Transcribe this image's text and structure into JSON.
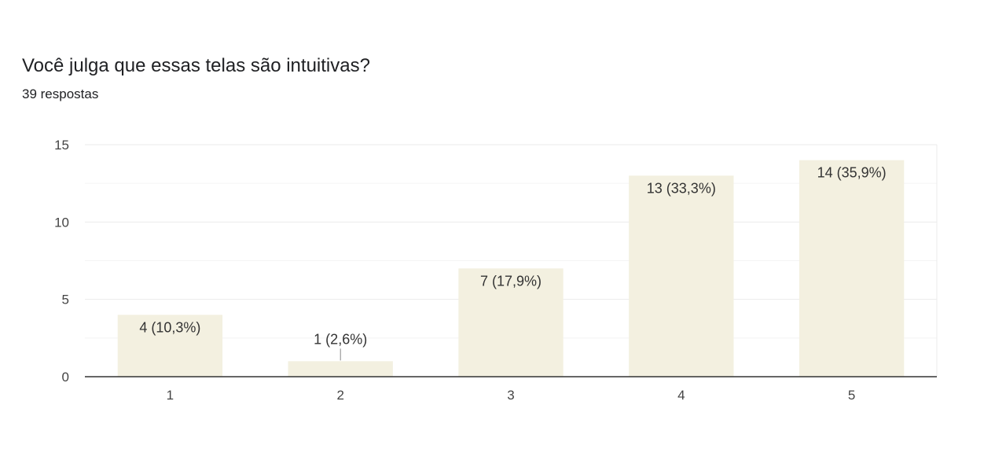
{
  "question": {
    "title": "Você julga que essas telas são intuitivas?",
    "responses": "39 respostas"
  },
  "colors": {
    "bar": "#f3f0e0",
    "grid": "#ebebeb",
    "axis": "#333333"
  },
  "chart_data": {
    "type": "bar",
    "categories": [
      "1",
      "2",
      "3",
      "4",
      "5"
    ],
    "values": [
      4,
      1,
      7,
      13,
      14
    ],
    "data_labels": [
      "4 (10,3%)",
      "1 (2,6%)",
      "7 (17,9%)",
      "13 (33,3%)",
      "14 (35,9%)"
    ],
    "ylim": [
      0,
      15
    ],
    "yticks": [
      0,
      5,
      10,
      15
    ],
    "grid": true,
    "legend": "none"
  }
}
